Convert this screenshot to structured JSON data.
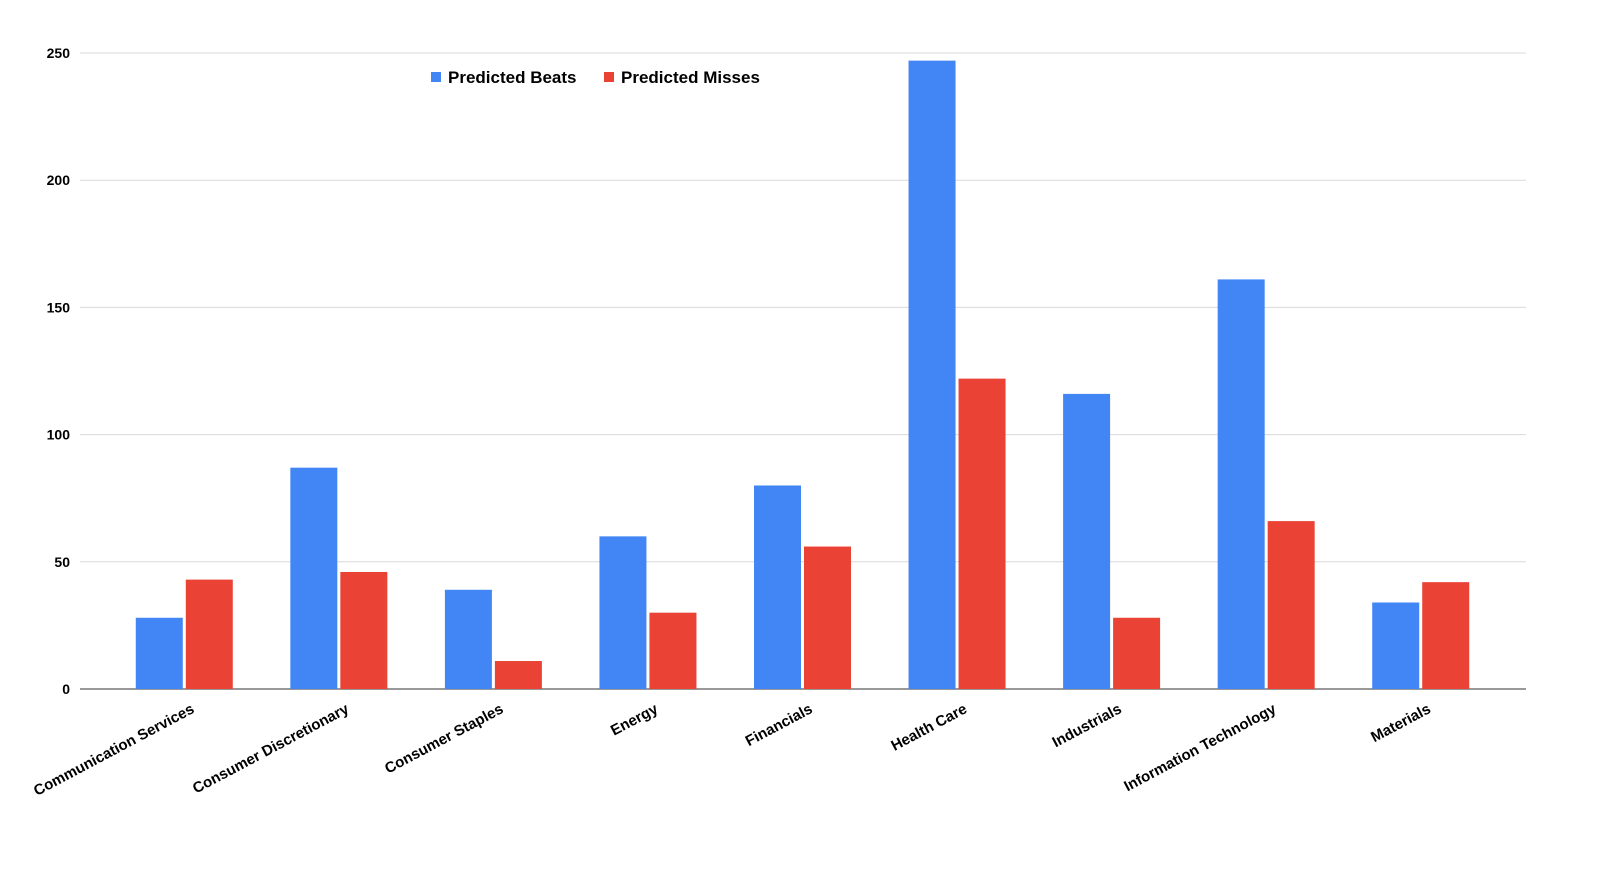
{
  "chart_data": {
    "type": "bar",
    "title": "",
    "xlabel": "",
    "ylabel": "",
    "ylim": [
      0,
      250
    ],
    "yticks": [
      0,
      50,
      100,
      150,
      200,
      250
    ],
    "grid": true,
    "legend_position": "top",
    "categories": [
      "Communication Services",
      "Consumer Discretionary",
      "Consumer Staples",
      "Energy",
      "Financials",
      "Health Care",
      "Industrials",
      "Information Technology",
      "Materials"
    ],
    "series": [
      {
        "name": "Predicted Beats",
        "color": "#4285f4",
        "values": [
          28,
          87,
          39,
          60,
          80,
          247,
          116,
          161,
          34
        ]
      },
      {
        "name": "Predicted Misses",
        "color": "#ea4335",
        "values": [
          43,
          46,
          11,
          30,
          56,
          122,
          28,
          66,
          42
        ]
      }
    ]
  }
}
